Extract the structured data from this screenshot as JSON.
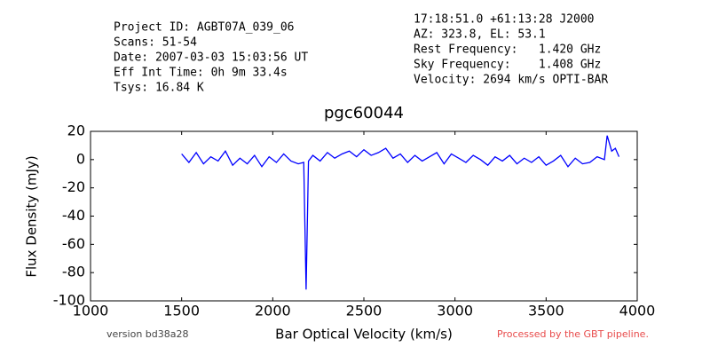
{
  "chart_data": {
    "type": "line",
    "title": "pgc60044",
    "info_left": [
      "Project ID: AGBT07A_039_06",
      "Scans: 51-54",
      "Date: 2007-03-03 15:03:56 UT",
      "Eff Int Time: 0h 9m 33.4s",
      "Tsys: 16.84 K"
    ],
    "info_right": [
      "17:18:51.0 +61:13:28 J2000",
      "AZ: 323.8, EL: 53.1",
      "Rest Frequency:   1.420 GHz",
      "Sky Frequency:    1.408 GHz",
      "Velocity: 2694 km/s OPTI-BAR"
    ],
    "x_label": "Bar Optical Velocity (km/s)",
    "y_label": "Flux Density (mJy)",
    "version": "version bd38a28",
    "pipeline_note": "Processed by the GBT pipeline.",
    "x": [
      1500,
      1540,
      1580,
      1620,
      1660,
      1700,
      1740,
      1780,
      1820,
      1860,
      1900,
      1940,
      1980,
      2020,
      2060,
      2100,
      2140,
      2170,
      2183,
      2196,
      2220,
      2260,
      2300,
      2340,
      2380,
      2420,
      2460,
      2500,
      2540,
      2580,
      2620,
      2660,
      2700,
      2740,
      2780,
      2820,
      2860,
      2900,
      2940,
      2980,
      3020,
      3060,
      3100,
      3140,
      3180,
      3220,
      3260,
      3300,
      3340,
      3380,
      3420,
      3460,
      3500,
      3540,
      3580,
      3620,
      3660,
      3700,
      3740,
      3780,
      3820,
      3835,
      3860,
      3880,
      3900
    ],
    "series": [
      {
        "color": "#0000ff",
        "values": [
          4,
          -2,
          5,
          -3,
          2,
          -1,
          6,
          -4,
          1,
          -3,
          3,
          -5,
          2,
          -2,
          4,
          -1,
          -3,
          -2,
          -92,
          -1,
          3,
          -1,
          5,
          1,
          4,
          6,
          2,
          7,
          3,
          5,
          8,
          1,
          4,
          -2,
          3,
          -1,
          2,
          5,
          -3,
          4,
          1,
          -2,
          3,
          0,
          -4,
          2,
          -1,
          3,
          -3,
          1,
          -2,
          2,
          -4,
          -1,
          3,
          -5,
          1,
          -3,
          -2,
          2,
          0,
          17,
          6,
          8,
          2
        ]
      }
    ],
    "xlim": [
      1000,
      4000
    ],
    "xticks": [
      1000,
      1500,
      2000,
      2500,
      3000,
      3500,
      4000
    ],
    "ylim": [
      -100,
      20
    ],
    "yticks": [
      -100,
      -80,
      -60,
      -40,
      -20,
      0,
      20
    ]
  }
}
